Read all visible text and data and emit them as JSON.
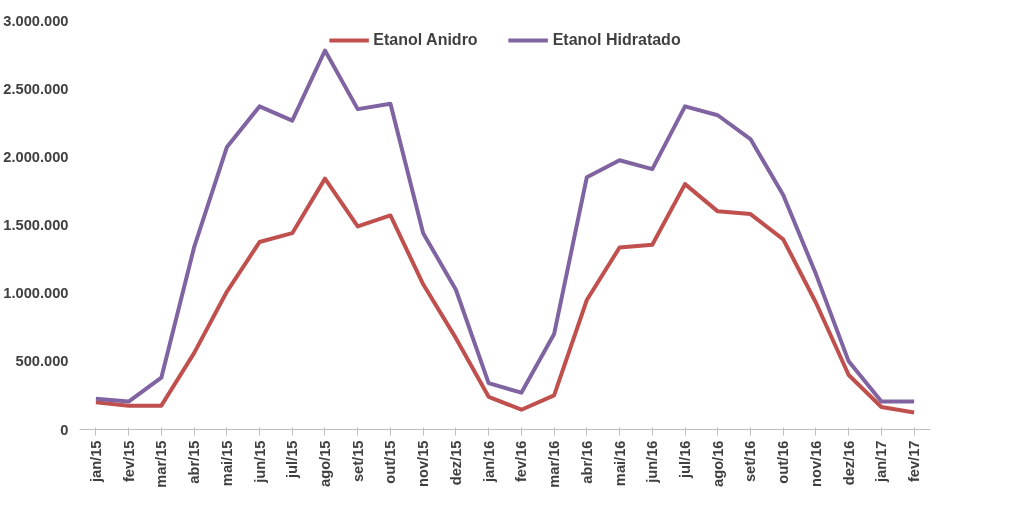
{
  "chart_data": {
    "type": "line",
    "categories": [
      "jan/15",
      "fev/15",
      "mar/15",
      "abr/15",
      "mai/15",
      "jun/15",
      "jul/15",
      "ago/15",
      "set/15",
      "out/15",
      "nov/15",
      "dez/15",
      "jan/16",
      "fev/16",
      "mar/16",
      "abr/16",
      "mai/16",
      "jun/16",
      "jul/16",
      "ago/16",
      "set/16",
      "out/16",
      "nov/16",
      "dez/16",
      "jan/17",
      "fev/17"
    ],
    "series": [
      {
        "name": "Etanol Anidro",
        "color": "#c0504d",
        "values": [
          200000,
          175000,
          175000,
          560000,
          1010000,
          1375000,
          1440000,
          1840000,
          1490000,
          1570000,
          1065000,
          670000,
          240000,
          145000,
          250000,
          950000,
          1335000,
          1355000,
          1800000,
          1600000,
          1580000,
          1395000,
          930000,
          400000,
          165000,
          125000
        ]
      },
      {
        "name": "Etanol Hidratado",
        "color": "#8064a2",
        "values": [
          225000,
          205000,
          380000,
          1335000,
          2070000,
          2370000,
          2265000,
          2780000,
          2350000,
          2390000,
          1440000,
          1025000,
          340000,
          270000,
          700000,
          1850000,
          1975000,
          1910000,
          2370000,
          2305000,
          2130000,
          1720000,
          1140000,
          500000,
          205000,
          205000
        ]
      }
    ],
    "ylim": [
      0,
      3000000
    ],
    "yticks": [
      {
        "value": 0,
        "label": "0"
      },
      {
        "value": 500000,
        "label": "500.000"
      },
      {
        "value": 1000000,
        "label": "1.000.000"
      },
      {
        "value": 1500000,
        "label": "1.500.000"
      },
      {
        "value": 2000000,
        "label": "2.000.000"
      },
      {
        "value": 2500000,
        "label": "2.500.000"
      },
      {
        "value": 3000000,
        "label": "3.000.000"
      }
    ],
    "grid": false,
    "legend": "top",
    "marker": "none",
    "line_style": "solid"
  }
}
